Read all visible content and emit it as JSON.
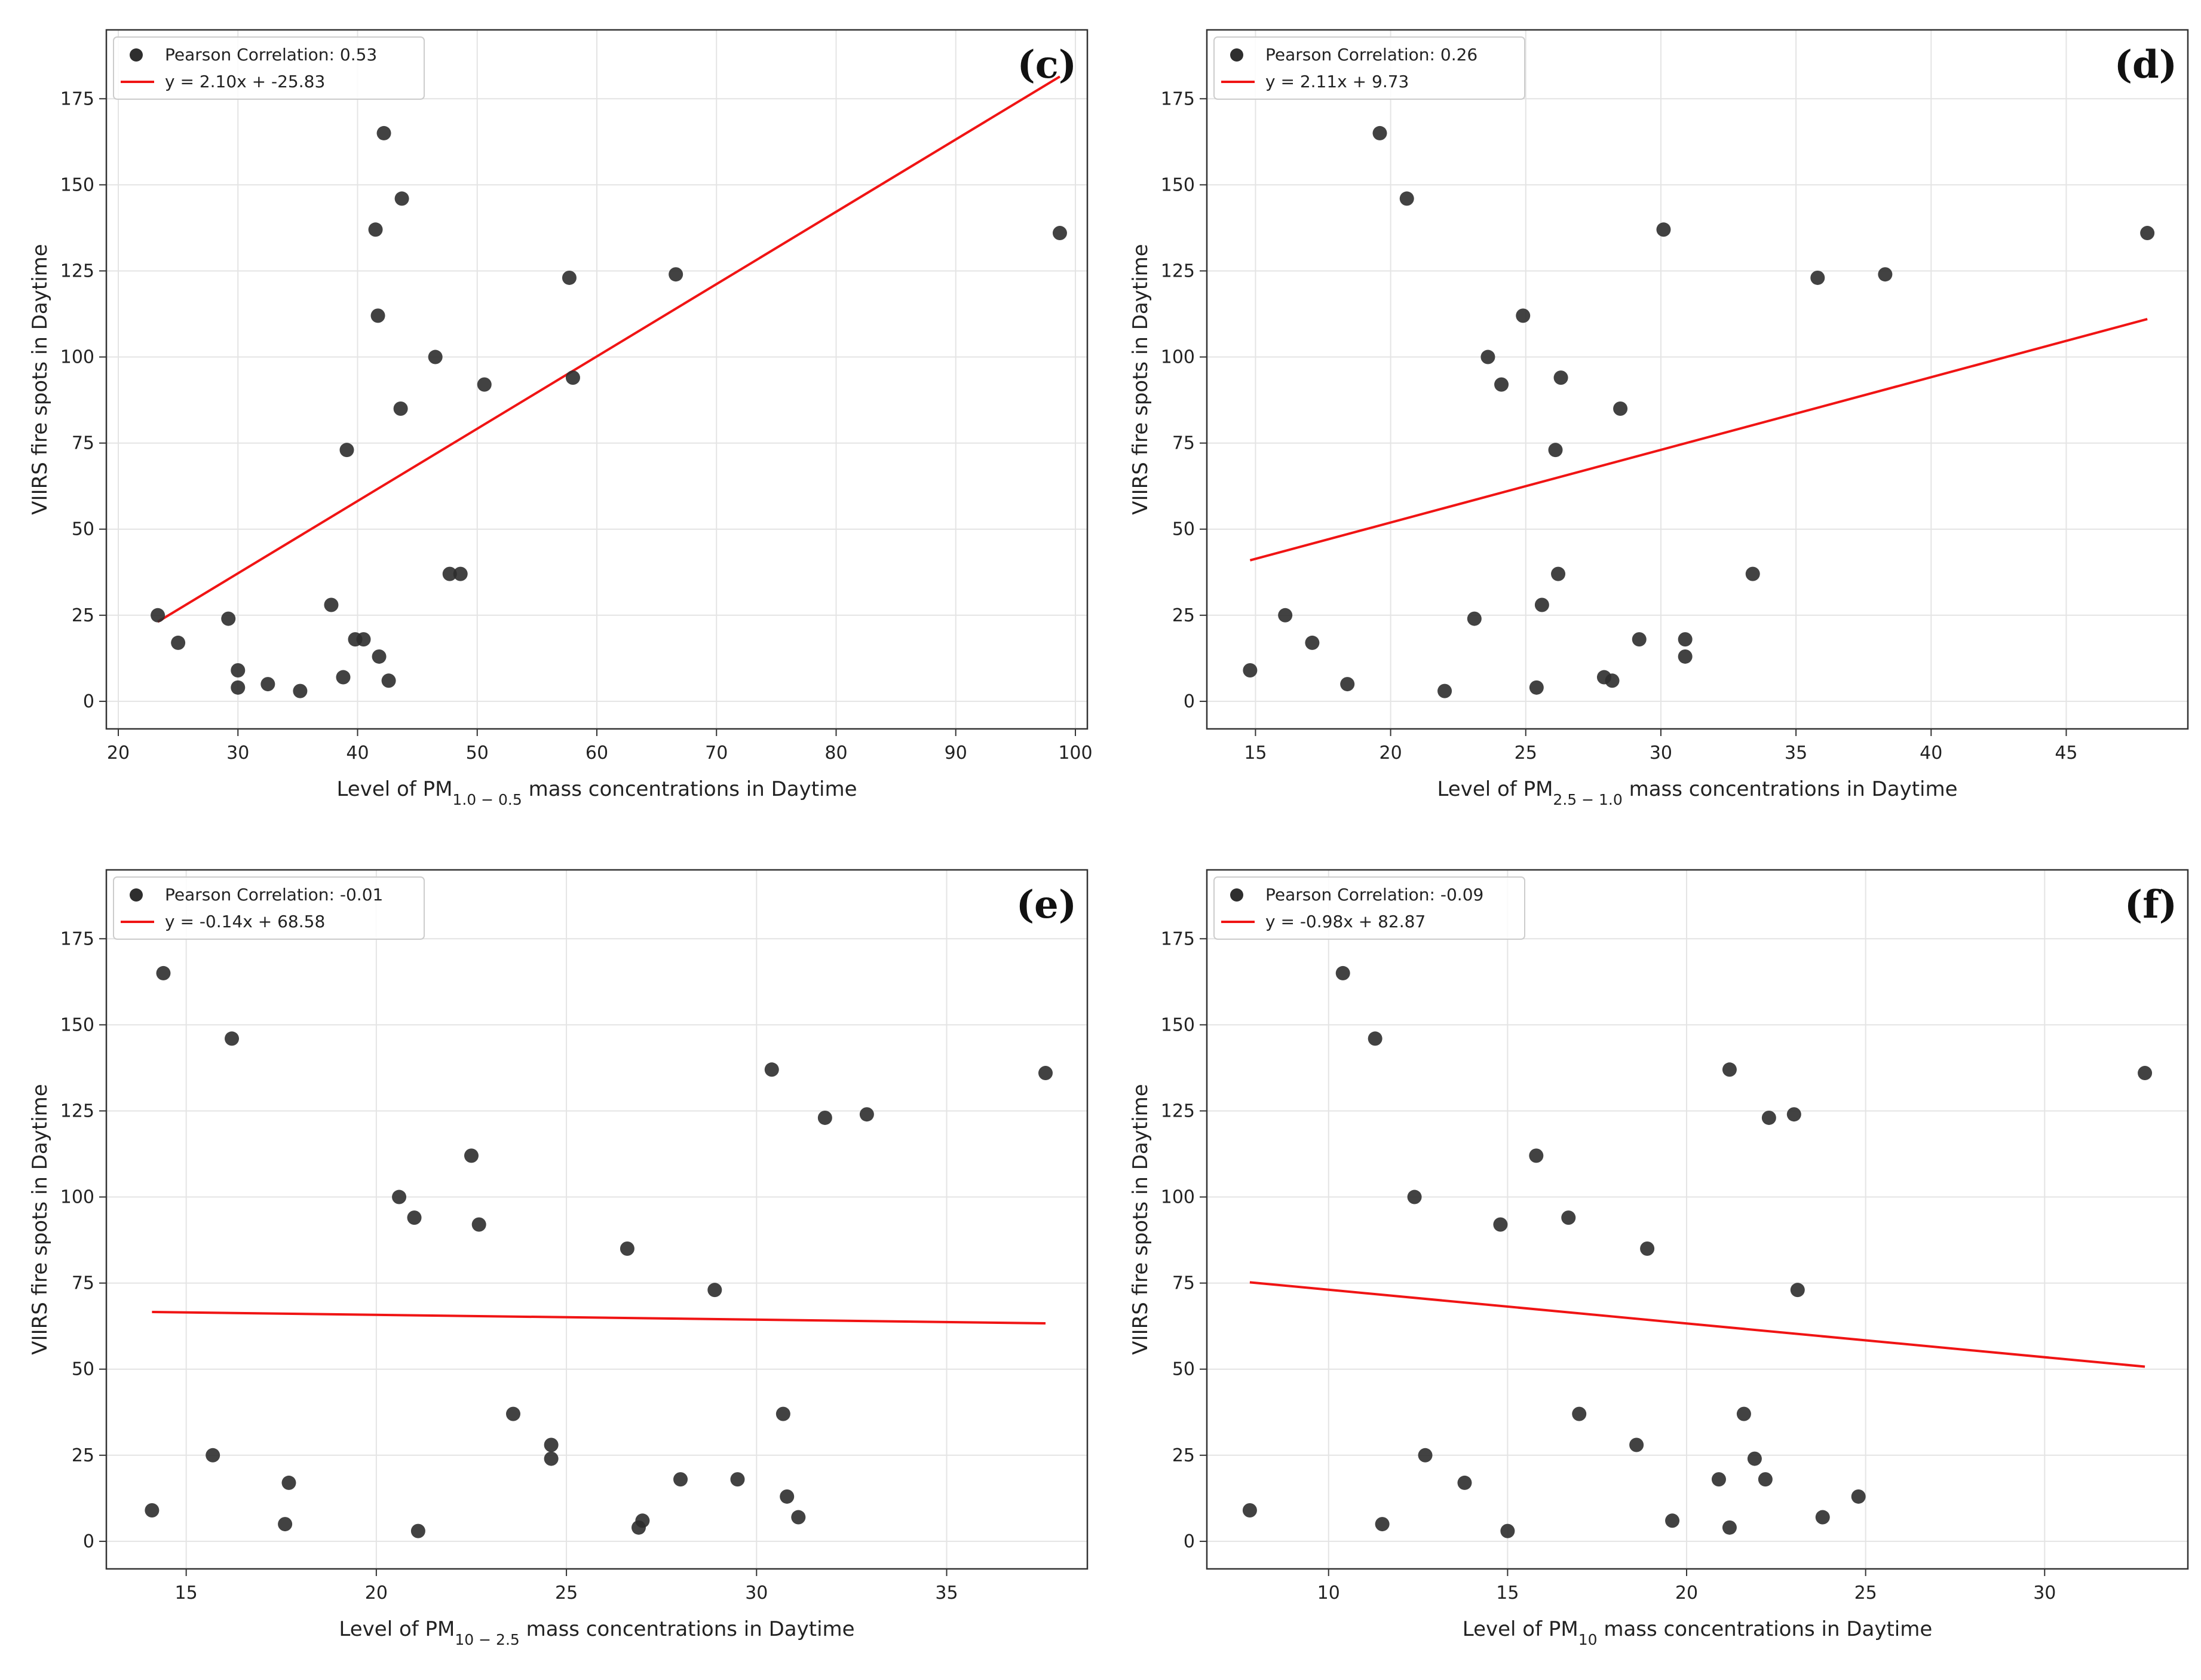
{
  "chart_data": [
    {
      "type": "scatter",
      "panel_label": "(c)",
      "xlabel": {
        "pre": "Level of PM",
        "sub": "1.0 − 0.5",
        "post": " mass concentrations in Daytime"
      },
      "ylabel": "VIIRS fire spots in Daytime",
      "xlim": [
        19,
        101
      ],
      "ylim": [
        -8,
        195
      ],
      "xticks": [
        20,
        30,
        40,
        50,
        60,
        70,
        80,
        90,
        100
      ],
      "yticks": [
        0,
        25,
        50,
        75,
        100,
        125,
        150,
        175
      ],
      "grid": true,
      "legend": {
        "position": "top-left",
        "points_label": "Pearson Correlation: 0.53",
        "line_label": "y = 2.10x + -25.83"
      },
      "fit": {
        "slope": 2.1,
        "intercept": -25.83,
        "x_range": [
          23.3,
          98.7
        ]
      },
      "series": [
        {
          "x": [
            23.3,
            25,
            29.2,
            30,
            30,
            32.5,
            35.2,
            37.8,
            38.8,
            39.1,
            39.8,
            40.5,
            41.5,
            41.7,
            41.8,
            42.2,
            42.6,
            43.6,
            43.7,
            46.5,
            47.7,
            48.6,
            50.6,
            57.7,
            58,
            66.6,
            98.7
          ],
          "y": [
            25,
            17,
            24,
            9,
            4,
            5,
            3,
            28,
            7,
            73,
            18,
            18,
            137,
            112,
            13,
            165,
            6,
            85,
            146,
            100,
            37,
            37,
            92,
            123,
            94,
            124,
            136
          ]
        }
      ]
    },
    {
      "type": "scatter",
      "panel_label": "(d)",
      "xlabel": {
        "pre": "Level of PM",
        "sub": "2.5 − 1.0",
        "post": " mass concentrations in Daytime"
      },
      "ylabel": "VIIRS fire spots in Daytime",
      "xlim": [
        13.2,
        49.5
      ],
      "ylim": [
        -8,
        195
      ],
      "xticks": [
        15,
        20,
        25,
        30,
        35,
        40,
        45
      ],
      "yticks": [
        0,
        25,
        50,
        75,
        100,
        125,
        150,
        175
      ],
      "grid": true,
      "legend": {
        "position": "top-left",
        "points_label": "Pearson Correlation: 0.26",
        "line_label": "y = 2.11x + 9.73"
      },
      "fit": {
        "slope": 2.11,
        "intercept": 9.73,
        "x_range": [
          14.8,
          48
        ]
      },
      "series": [
        {
          "x": [
            14.8,
            16.1,
            17.1,
            18.4,
            19.6,
            20.6,
            22,
            23.1,
            23.6,
            24.1,
            24.9,
            25.4,
            25.6,
            26.1,
            26.2,
            26.3,
            27.9,
            28.2,
            28.5,
            29.2,
            30.1,
            30.9,
            30.9,
            33.4,
            35.8,
            38.3,
            48
          ],
          "y": [
            9,
            25,
            17,
            5,
            165,
            146,
            3,
            24,
            100,
            92,
            112,
            4,
            28,
            73,
            37,
            94,
            7,
            6,
            85,
            18,
            137,
            18,
            13,
            37,
            123,
            124,
            136
          ]
        }
      ]
    },
    {
      "type": "scatter",
      "panel_label": "(e)",
      "xlabel": {
        "pre": "Level of PM",
        "sub": "10 − 2.5",
        "post": " mass concentrations in Daytime"
      },
      "ylabel": "VIIRS fire spots in Daytime",
      "xlim": [
        12.9,
        38.7
      ],
      "ylim": [
        -8,
        195
      ],
      "xticks": [
        15,
        20,
        25,
        30,
        35
      ],
      "yticks": [
        0,
        25,
        50,
        75,
        100,
        125,
        150,
        175
      ],
      "grid": true,
      "legend": {
        "position": "top-left",
        "points_label": "Pearson Correlation: -0.01",
        "line_label": "y = -0.14x + 68.58"
      },
      "fit": {
        "slope": -0.14,
        "intercept": 68.58,
        "x_range": [
          14.1,
          37.6
        ]
      },
      "series": [
        {
          "x": [
            14.1,
            14.4,
            15.7,
            16.2,
            17.6,
            17.7,
            20.6,
            21,
            21.1,
            22.5,
            22.7,
            23.6,
            24.6,
            24.6,
            26.6,
            26.9,
            27,
            28,
            28.9,
            29.5,
            30.4,
            30.7,
            30.8,
            31.1,
            31.8,
            32.9,
            37.6
          ],
          "y": [
            9,
            165,
            25,
            146,
            5,
            17,
            100,
            94,
            3,
            112,
            92,
            37,
            28,
            24,
            85,
            4,
            6,
            18,
            73,
            18,
            137,
            37,
            13,
            7,
            123,
            124,
            136
          ]
        }
      ]
    },
    {
      "type": "scatter",
      "panel_label": "(f)",
      "xlabel": {
        "pre": "Level of PM",
        "sub": "10",
        "post": " mass concentrations in Daytime"
      },
      "ylabel": "VIIRS fire spots in Daytime",
      "xlim": [
        6.6,
        34
      ],
      "ylim": [
        -8,
        195
      ],
      "xticks": [
        10,
        15,
        20,
        25,
        30
      ],
      "yticks": [
        0,
        25,
        50,
        75,
        100,
        125,
        150,
        175
      ],
      "grid": true,
      "legend": {
        "position": "top-left",
        "points_label": "Pearson Correlation: -0.09",
        "line_label": "y = -0.98x + 82.87"
      },
      "fit": {
        "slope": -0.98,
        "intercept": 82.87,
        "x_range": [
          7.8,
          32.8
        ]
      },
      "series": [
        {
          "x": [
            7.8,
            10.4,
            11.3,
            11.5,
            12.4,
            12.7,
            13.8,
            14.8,
            15,
            15.8,
            16.7,
            17,
            18.6,
            18.9,
            19.6,
            20.9,
            21.2,
            21.2,
            21.6,
            21.9,
            22.2,
            22.3,
            23,
            23.1,
            23.8,
            24.8,
            32.8
          ],
          "y": [
            9,
            165,
            146,
            5,
            100,
            25,
            17,
            92,
            3,
            112,
            94,
            37,
            28,
            85,
            6,
            18,
            137,
            4,
            37,
            24,
            18,
            123,
            124,
            73,
            7,
            13,
            136
          ]
        }
      ]
    }
  ]
}
